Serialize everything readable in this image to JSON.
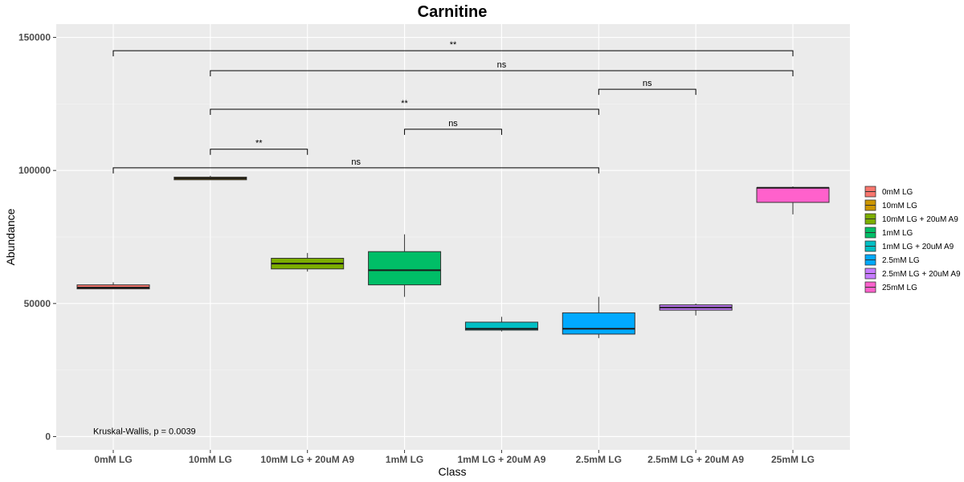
{
  "chart_data": {
    "type": "box",
    "title": "Carnitine",
    "xlabel": "Class",
    "ylabel": "Abundance",
    "ylim": [
      -5000,
      155000
    ],
    "yticks": [
      0,
      50000,
      100000,
      150000
    ],
    "grid": true,
    "legend_position": "right",
    "categories": [
      "0mM LG",
      "10mM LG",
      "10mM LG + 20uM A9",
      "1mM LG",
      "1mM LG + 20uM A9",
      "2.5mM LG",
      "2.5mM LG + 20uM A9",
      "25mM LG"
    ],
    "colors": [
      "#F8766D",
      "#CD9600",
      "#7CAE00",
      "#00BE67",
      "#00BFC4",
      "#00A9FF",
      "#C77CFF",
      "#FF61CC"
    ],
    "boxes": [
      {
        "min": 55500,
        "q1": 55500,
        "median": 56000,
        "q3": 57000,
        "max": 58000
      },
      {
        "min": 96500,
        "q1": 96500,
        "median": 97000,
        "q3": 97500,
        "max": 98000
      },
      {
        "min": 62000,
        "q1": 63000,
        "median": 65000,
        "q3": 67000,
        "max": 69000
      },
      {
        "min": 52500,
        "q1": 57000,
        "median": 62500,
        "q3": 69500,
        "max": 76000
      },
      {
        "min": 39500,
        "q1": 40000,
        "median": 40500,
        "q3": 43000,
        "max": 45000
      },
      {
        "min": 37000,
        "q1": 38500,
        "median": 40500,
        "q3": 46500,
        "max": 52500
      },
      {
        "min": 45500,
        "q1": 47500,
        "median": 48500,
        "q3": 49500,
        "max": 50000
      },
      {
        "min": 83500,
        "q1": 88000,
        "median": 93500,
        "q3": 93500,
        "max": 94000
      }
    ],
    "comparisons": [
      {
        "from": 0,
        "to": 5,
        "y": 101000,
        "label": "ns"
      },
      {
        "from": 1,
        "to": 2,
        "y": 108000,
        "label": "**"
      },
      {
        "from": 3,
        "to": 4,
        "y": 115500,
        "label": "ns"
      },
      {
        "from": 1,
        "to": 5,
        "y": 123000,
        "label": "**"
      },
      {
        "from": 5,
        "to": 6,
        "y": 130500,
        "label": "ns"
      },
      {
        "from": 1,
        "to": 7,
        "y": 137500,
        "label": "ns"
      },
      {
        "from": 0,
        "to": 7,
        "y": 145000,
        "label": "**"
      }
    ],
    "annotation": "Kruskal-Wallis, p = 0.0039",
    "annotation_y": 0
  }
}
